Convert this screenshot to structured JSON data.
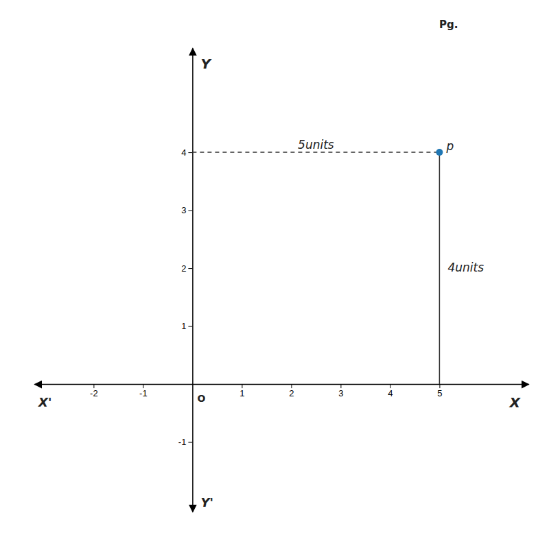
{
  "chart_data": {
    "type": "scatter",
    "x": [
      5
    ],
    "y": [
      4
    ],
    "xlim": [
      -3.2,
      6.8
    ],
    "ylim": [
      -2.2,
      5.8
    ],
    "xticks": [
      -2,
      -1,
      1,
      2,
      3,
      4,
      5
    ],
    "yticks": [
      -1,
      1,
      2,
      3,
      4
    ],
    "grid": false,
    "annotations": [
      "X",
      "X'",
      "Y",
      "Y'",
      "O",
      "p",
      "5units",
      "4units",
      "Pg."
    ]
  }
}
